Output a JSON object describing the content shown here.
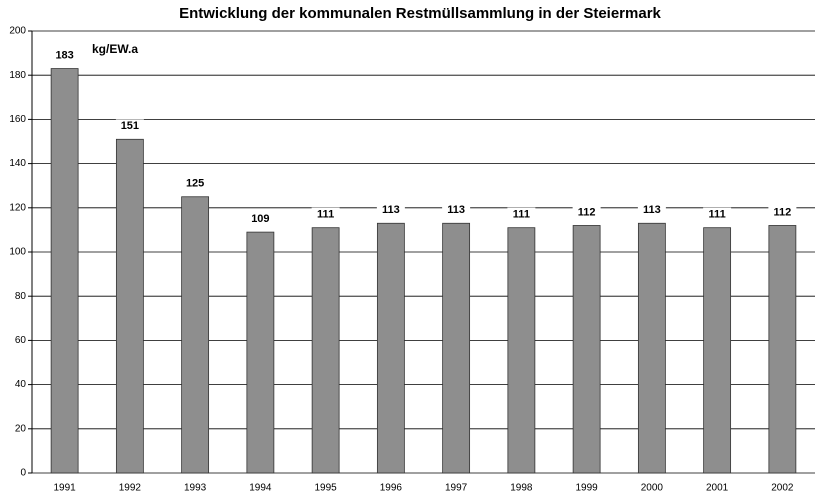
{
  "chart_data": {
    "type": "bar",
    "title": "Entwicklung der kommunalen Restmüllsammlung in der Steiermark",
    "annotation": "kg/EW.a",
    "categories": [
      "1991",
      "1992",
      "1993",
      "1994",
      "1995",
      "1996",
      "1997",
      "1998",
      "1999",
      "2000",
      "2001",
      "2002"
    ],
    "values": [
      183,
      151,
      125,
      109,
      111,
      113,
      113,
      111,
      112,
      113,
      111,
      112
    ],
    "color": "#8e8e8e",
    "ylim": [
      0,
      200
    ],
    "yticks": [
      0,
      20,
      40,
      60,
      80,
      100,
      120,
      140,
      160,
      180,
      200
    ],
    "grid": true
  }
}
